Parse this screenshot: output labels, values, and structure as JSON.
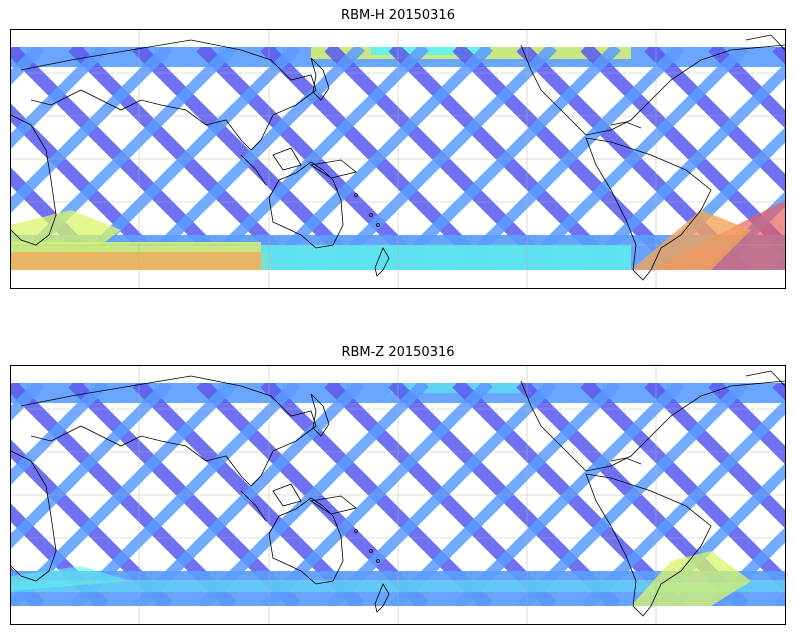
{
  "panels": [
    {
      "title": "RBM-H 20150316",
      "colors": {
        "low": "#5b5ef0",
        "lowmid": "#5a9cff",
        "mid": "#5ff2ee",
        "midhigh": "#d9f56a",
        "high": "#f2a45a",
        "max": "#e86060"
      },
      "band_level": "mixed"
    },
    {
      "title": "RBM-Z 20150316",
      "colors": {
        "low": "#5b5ef0",
        "lowmid": "#5a9cff",
        "mid": "#5ff2ee",
        "midhigh": "#d9f56a",
        "high": "#f2a45a",
        "max": "#e86060"
      },
      "band_level": "low"
    }
  ],
  "map": {
    "coastline_color": "#000000",
    "gridline_color": "#b0b0b0"
  }
}
